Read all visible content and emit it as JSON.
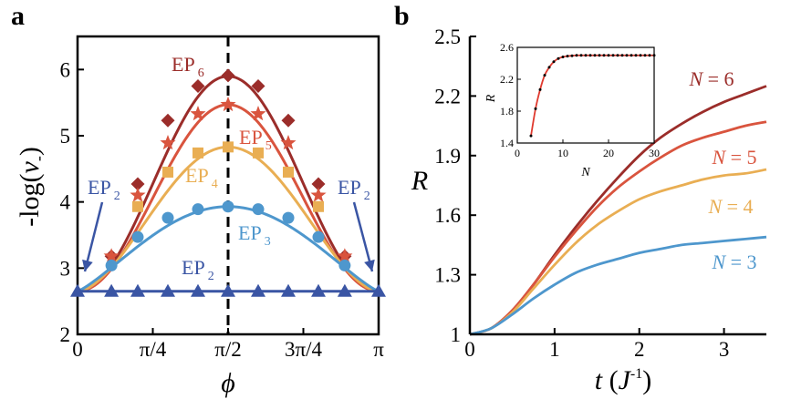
{
  "chart_data": [
    {
      "panel": "a",
      "type": "line",
      "ylabel": "-log(v-)",
      "xlabel": "ϕ",
      "xlim": [
        0,
        3.14159
      ],
      "ylim": [
        2,
        6.5
      ],
      "xticks": [
        0,
        0.7854,
        1.5708,
        2.3562,
        3.14159
      ],
      "xtick_labels": [
        "0",
        "π/4",
        "π/2",
        "3π/4",
        "π"
      ],
      "yticks": [
        2,
        3,
        4,
        5,
        6
      ],
      "ytick_labels": [
        "2",
        "3",
        "4",
        "5",
        "6"
      ],
      "vertical_dashed_line_x": 1.5708,
      "series": [
        {
          "name": "6",
          "color": "#9b2d2a",
          "marker": "diamond",
          "curve": {
            "base": 2.65,
            "amp": 3.25,
            "exp": 2
          },
          "x": [
            0.3534,
            0.6283,
            0.9425,
            1.2566,
            1.5708,
            1.885,
            2.1991,
            2.5133,
            2.7882
          ],
          "y": [
            3.18,
            4.27,
            5.23,
            5.75,
            5.91,
            5.75,
            5.23,
            4.27,
            3.18
          ]
        },
        {
          "name": "5",
          "color": "#d9543e",
          "marker": "star",
          "curve": {
            "base": 2.65,
            "amp": 2.82,
            "exp": 2
          },
          "x": [
            0.3534,
            0.6283,
            0.9425,
            1.2566,
            1.5708,
            1.885,
            2.1991,
            2.5133,
            2.7882
          ],
          "y": [
            3.18,
            4.1,
            4.89,
            5.33,
            5.47,
            5.33,
            4.89,
            4.1,
            3.18
          ]
        },
        {
          "name": "4",
          "color": "#e9ae53",
          "marker": "square",
          "curve": {
            "base": 2.65,
            "amp": 2.18,
            "exp": 1.7
          },
          "x": [
            0.6283,
            0.9425,
            1.2566,
            1.5708,
            1.885,
            2.1991,
            2.5133
          ],
          "y": [
            3.93,
            4.45,
            4.74,
            4.83,
            4.74,
            4.45,
            3.93
          ]
        },
        {
          "name": "3",
          "color": "#4e97cd",
          "marker": "circle",
          "curve": {
            "base": 2.65,
            "amp": 1.28,
            "exp": 1.2
          },
          "x": [
            0.3534,
            0.6283,
            0.9425,
            1.2566,
            1.5708,
            1.885,
            2.1991,
            2.5133,
            2.7882
          ],
          "y": [
            3.04,
            3.47,
            3.76,
            3.89,
            3.93,
            3.89,
            3.76,
            3.47,
            3.04
          ]
        },
        {
          "name": "2",
          "color": "#3a55a4",
          "marker": "triangle",
          "curve": {
            "base": 2.65,
            "amp": 0,
            "exp": 1
          },
          "x": [
            0,
            0.3534,
            0.6283,
            0.9425,
            1.2566,
            1.5708,
            1.885,
            2.1991,
            2.5133,
            2.7882,
            3.14159
          ],
          "y": [
            2.65,
            2.65,
            2.65,
            2.65,
            2.65,
            2.65,
            2.65,
            2.65,
            2.65,
            2.65,
            2.65
          ]
        }
      ],
      "annotations": [
        {
          "base": "EP",
          "sub": "6",
          "color": "#9b2d2a"
        },
        {
          "base": "EP",
          "sub": "5",
          "color": "#d9543e"
        },
        {
          "base": "EP",
          "sub": "4",
          "color": "#e9ae53"
        },
        {
          "base": "EP",
          "sub": "3",
          "color": "#4e97cd"
        },
        {
          "base": "EP",
          "sub": "2",
          "color": "#3a55a4"
        },
        {
          "base": "EP",
          "sub": "2",
          "color": "#3a55a4"
        },
        {
          "base": "EP",
          "sub": "2",
          "color": "#3a55a4"
        }
      ]
    },
    {
      "panel": "b",
      "type": "line",
      "ylabel": "R",
      "xlabel": "t (J-1)",
      "xlim": [
        0,
        3.5
      ],
      "ylim": [
        1,
        2.5
      ],
      "xticks": [
        0,
        1,
        2,
        3
      ],
      "xtick_labels": [
        "0",
        "1",
        "2",
        "3"
      ],
      "yticks": [
        1,
        1.3,
        1.6,
        1.9,
        2.2,
        2.5
      ],
      "ytick_labels": [
        "1",
        "1.3",
        "1.6",
        "1.9",
        "2.2",
        "2.5"
      ],
      "series": [
        {
          "name": "N = 6",
          "color": "#9b2d2a",
          "x": [
            0,
            0.25,
            0.5,
            0.75,
            1,
            1.25,
            1.5,
            1.75,
            2,
            2.25,
            2.5,
            2.75,
            3,
            3.25,
            3.5
          ],
          "y": [
            1.0,
            1.03,
            1.12,
            1.25,
            1.4,
            1.54,
            1.67,
            1.79,
            1.9,
            1.99,
            2.06,
            2.12,
            2.17,
            2.21,
            2.25
          ]
        },
        {
          "name": "N = 5",
          "color": "#d9543e",
          "x": [
            0,
            0.25,
            0.5,
            0.75,
            1,
            1.25,
            1.5,
            1.75,
            2,
            2.25,
            2.5,
            2.75,
            3,
            3.25,
            3.5
          ],
          "y": [
            1.0,
            1.03,
            1.12,
            1.25,
            1.39,
            1.52,
            1.64,
            1.74,
            1.82,
            1.89,
            1.95,
            1.99,
            2.02,
            2.05,
            2.07
          ]
        },
        {
          "name": "N = 4",
          "color": "#e9ae53",
          "x": [
            0,
            0.25,
            0.5,
            0.75,
            1,
            1.25,
            1.5,
            1.75,
            2,
            2.25,
            2.5,
            2.75,
            3,
            3.25,
            3.5
          ],
          "y": [
            1.0,
            1.03,
            1.11,
            1.23,
            1.35,
            1.46,
            1.55,
            1.62,
            1.68,
            1.72,
            1.75,
            1.78,
            1.8,
            1.81,
            1.83
          ]
        },
        {
          "name": "N = 3",
          "color": "#4e97cd",
          "x": [
            0,
            0.25,
            0.5,
            0.75,
            1,
            1.25,
            1.5,
            1.75,
            2,
            2.25,
            2.5,
            2.75,
            3,
            3.25,
            3.5
          ],
          "y": [
            1.0,
            1.03,
            1.1,
            1.18,
            1.25,
            1.31,
            1.35,
            1.38,
            1.41,
            1.43,
            1.45,
            1.46,
            1.47,
            1.48,
            1.49
          ]
        }
      ],
      "inset": {
        "type": "line",
        "xlabel": "N",
        "ylabel": "R",
        "xlim": [
          0,
          30
        ],
        "ylim": [
          1.4,
          2.6
        ],
        "xticks": [
          0,
          10,
          20,
          30
        ],
        "xtick_labels": [
          "0",
          "10",
          "20",
          "30"
        ],
        "yticks": [
          1.4,
          1.8,
          2.2,
          2.6
        ],
        "ytick_labels": [
          "1.4",
          "1.8",
          "2.2",
          "2.6"
        ],
        "curve_color": "#e03a2f",
        "points_color": "#000000",
        "x": [
          3,
          4,
          5,
          6,
          7,
          8,
          9,
          10,
          11,
          12,
          13,
          14,
          15,
          16,
          17,
          18,
          19,
          20,
          21,
          22,
          23,
          24,
          25,
          26,
          27,
          28,
          29,
          30
        ],
        "y": [
          1.49,
          1.83,
          2.07,
          2.25,
          2.35,
          2.42,
          2.46,
          2.48,
          2.49,
          2.495,
          2.5,
          2.5,
          2.5,
          2.5,
          2.5,
          2.5,
          2.5,
          2.5,
          2.5,
          2.5,
          2.5,
          2.5,
          2.5,
          2.5,
          2.5,
          2.5,
          2.5,
          2.5
        ]
      }
    }
  ],
  "labels": {
    "panel_a": "a",
    "panel_b": "b",
    "a_ylabel_main": "-log(",
    "a_ylabel_var": "v",
    "a_ylabel_sub": "-",
    "a_ylabel_close": ")",
    "a_xlabel": "ϕ",
    "b_ylabel": "R",
    "b_xlabel_t": "t",
    "b_xlabel_open": " (",
    "b_xlabel_J": "J",
    "b_xlabel_exp": "-1",
    "b_xlabel_close": ")",
    "n6": "N = 6",
    "n5": "N = 5",
    "n4": "N = 4",
    "n3": "N = 3",
    "inset_xlabel": "N",
    "inset_ylabel": "R"
  }
}
